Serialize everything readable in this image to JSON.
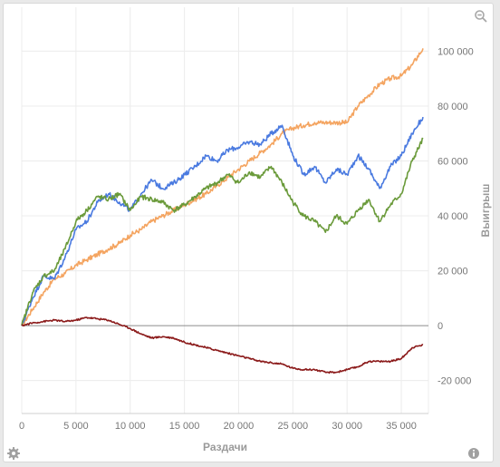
{
  "chart_data": {
    "type": "line",
    "xlabel": "Раздачи",
    "ylabel": "Выигрыш",
    "xlim": [
      0,
      37500
    ],
    "ylim": [
      -32000,
      116000
    ],
    "x_ticks": [
      0,
      5000,
      10000,
      15000,
      20000,
      25000,
      30000,
      35000
    ],
    "x_tick_labels": [
      "0",
      "5 000",
      "10 000",
      "15 000",
      "20 000",
      "25 000",
      "30 000",
      "35 000"
    ],
    "y_ticks": [
      -20000,
      0,
      20000,
      40000,
      60000,
      80000,
      100000
    ],
    "y_tick_labels": [
      "-20 000",
      "0",
      "20 000",
      "40 000",
      "60 000",
      "80 000",
      "100 000"
    ],
    "grid": true,
    "legend": "none",
    "series": [
      {
        "color": "#f4a460",
        "x": [
          0,
          1000,
          2000,
          3000,
          4000,
          5000,
          6000,
          7000,
          8000,
          9000,
          10000,
          11000,
          12000,
          13000,
          14000,
          15000,
          16000,
          17000,
          18000,
          19000,
          20000,
          21000,
          22000,
          23000,
          24000,
          25000,
          26000,
          27000,
          28000,
          29000,
          30000,
          31000,
          32000,
          33000,
          34000,
          35000,
          36000,
          37000
        ],
        "values": [
          0,
          6000,
          12000,
          17000,
          19000,
          22000,
          24000,
          26000,
          28000,
          30000,
          33000,
          35000,
          38000,
          40000,
          42000,
          44000,
          46000,
          48000,
          51000,
          54000,
          57000,
          60000,
          63000,
          66000,
          70000,
          72000,
          73000,
          74000,
          74000,
          74000,
          74000,
          80000,
          84000,
          88000,
          90000,
          91000,
          95000,
          101000
        ]
      },
      {
        "color": "#4a7ae0",
        "x": [
          0,
          1000,
          2000,
          3000,
          4000,
          5000,
          6000,
          7000,
          8000,
          9000,
          10000,
          11000,
          12000,
          13000,
          14000,
          15000,
          16000,
          17000,
          18000,
          19000,
          20000,
          21000,
          22000,
          23000,
          24000,
          25000,
          26000,
          27000,
          28000,
          29000,
          30000,
          31000,
          32000,
          33000,
          34000,
          35000,
          36000,
          37000
        ],
        "values": [
          0,
          10000,
          18000,
          17000,
          25000,
          35000,
          38000,
          45000,
          48000,
          45000,
          42000,
          48000,
          53000,
          50000,
          52000,
          55000,
          58000,
          62000,
          60000,
          64000,
          65000,
          67000,
          66000,
          70000,
          73000,
          62000,
          55000,
          58000,
          52000,
          57000,
          55000,
          62000,
          57000,
          50000,
          58000,
          62000,
          70000,
          76000
        ]
      },
      {
        "color": "#6a9a3a",
        "x": [
          0,
          1000,
          2000,
          3000,
          4000,
          5000,
          6000,
          7000,
          8000,
          9000,
          10000,
          11000,
          12000,
          13000,
          14000,
          15000,
          16000,
          17000,
          18000,
          19000,
          20000,
          21000,
          22000,
          23000,
          24000,
          25000,
          26000,
          27000,
          28000,
          29000,
          30000,
          31000,
          32000,
          33000,
          34000,
          35000,
          36000,
          37000
        ],
        "values": [
          0,
          12000,
          18000,
          20000,
          28000,
          38000,
          42000,
          47000,
          46000,
          48000,
          42000,
          47000,
          46000,
          45000,
          42000,
          44000,
          47000,
          50000,
          52000,
          55000,
          52000,
          56000,
          54000,
          58000,
          52000,
          45000,
          40000,
          38000,
          34000,
          40000,
          37000,
          42000,
          46000,
          38000,
          44000,
          48000,
          60000,
          68000
        ]
      },
      {
        "color": "#8b1a1a",
        "x": [
          0,
          1000,
          2000,
          3000,
          4000,
          5000,
          6000,
          7000,
          8000,
          9000,
          10000,
          11000,
          12000,
          13000,
          14000,
          15000,
          16000,
          17000,
          18000,
          19000,
          20000,
          21000,
          22000,
          23000,
          24000,
          25000,
          26000,
          27000,
          28000,
          29000,
          30000,
          31000,
          32000,
          33000,
          34000,
          35000,
          36000,
          37000
        ],
        "values": [
          0,
          1000,
          1500,
          2000,
          1500,
          2000,
          3000,
          2500,
          2000,
          500,
          -1000,
          -3000,
          -4500,
          -4000,
          -4500,
          -6000,
          -7000,
          -8000,
          -9000,
          -10000,
          -11000,
          -12000,
          -13000,
          -13500,
          -14000,
          -15500,
          -16000,
          -16000,
          -17000,
          -17000,
          -16000,
          -15000,
          -13000,
          -13000,
          -13000,
          -12000,
          -8000,
          -7000
        ]
      }
    ]
  }
}
